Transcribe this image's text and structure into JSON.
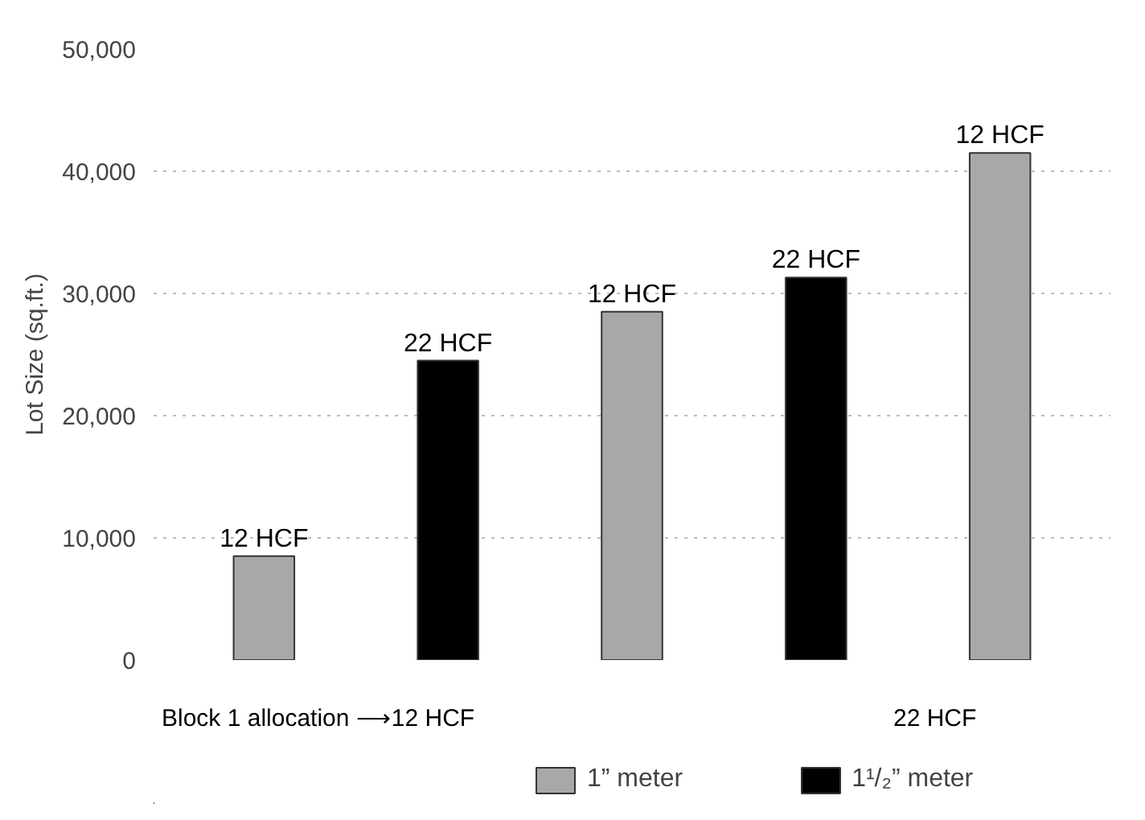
{
  "chart_data": {
    "type": "bar",
    "ylabel": "Lot Size (sq.ft.)",
    "categories": [
      null,
      null,
      null,
      null,
      null
    ],
    "series": [
      {
        "name": "1” meter",
        "color": "#a8a8a8",
        "values": [
          8500,
          null,
          28500,
          null,
          41500
        ]
      },
      {
        "name": "1¹/₂” meter",
        "color": "#000000",
        "values": [
          null,
          24500,
          null,
          31300,
          null
        ]
      }
    ],
    "ylim": [
      0,
      50000
    ],
    "yticks": [
      {
        "value": 0,
        "label": "0"
      },
      {
        "value": 10000,
        "label": "10,000"
      },
      {
        "value": 20000,
        "label": "20,000"
      },
      {
        "value": 30000,
        "label": "30,000"
      },
      {
        "value": 40000,
        "label": "40,000"
      },
      {
        "value": 50000,
        "label": "50,000"
      }
    ],
    "grid": "y",
    "legend": "bottom",
    "annotations": [
      {
        "text": "12 HCF",
        "y": 8500
      },
      {
        "text": "22 HCF",
        "y": 24500
      },
      {
        "text": "12 HCF",
        "y": 28500
      },
      {
        "text": "22 HCF",
        "y": 31300
      },
      {
        "text": "12 HCF",
        "y": 41500
      },
      "Block 1 allocation ⟶12 HCF",
      "22 HCF"
    ]
  }
}
